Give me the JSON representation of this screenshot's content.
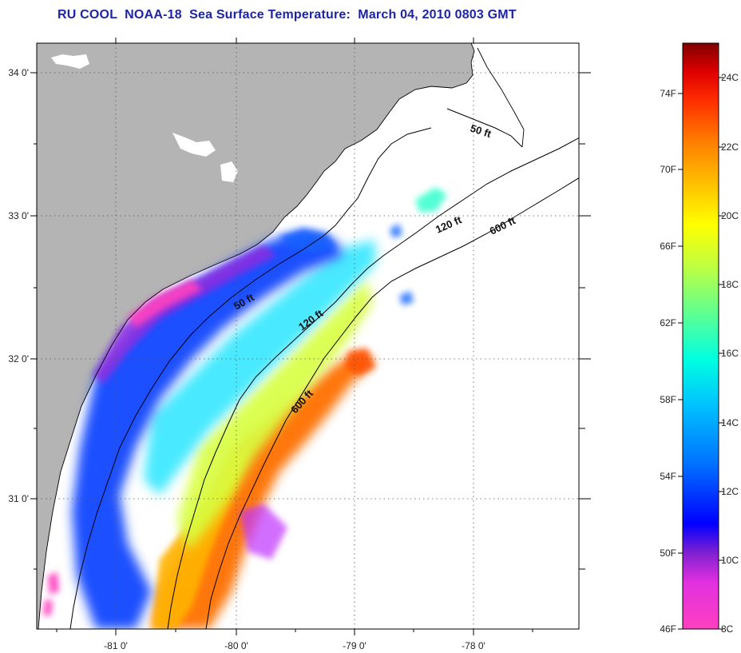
{
  "title": "RU COOL  NOAA-18  Sea Surface Temperature:  March 04, 2010 0803 GMT",
  "map": {
    "lon_ticks": [
      "-81 0'",
      "-80 0'",
      "-79 0'",
      "-78 0'"
    ],
    "lat_ticks": [
      "34 0'",
      "33 0'",
      "32 0'",
      "31 0'"
    ],
    "contours": [
      {
        "label": "50 ft"
      },
      {
        "label": "120 ft"
      },
      {
        "label": "600 ft"
      },
      {
        "label": "50 ft"
      },
      {
        "label": "120 ft"
      },
      {
        "label": "600 ft"
      }
    ],
    "colors": {
      "land": "#b4b4b4",
      "cloud": "#ffffff",
      "coast": "#000000"
    }
  },
  "colorbar": {
    "fahrenheit": [
      "74F",
      "70F",
      "66F",
      "62F",
      "58F",
      "54F",
      "50F",
      "46F"
    ],
    "celsius": [
      "24C",
      "22C",
      "20C",
      "18C",
      "16C",
      "14C",
      "12C",
      "10C",
      "8C"
    ],
    "range_c": [
      8,
      25
    ],
    "stops": [
      "#ff40c0",
      "#e030e0",
      "#8020d0",
      "#0000ff",
      "#0070ff",
      "#00c0ff",
      "#00ffe0",
      "#60ff90",
      "#c0ff40",
      "#ffff00",
      "#ffc000",
      "#ff8000",
      "#ff3000",
      "#e00000",
      "#800000"
    ]
  }
}
